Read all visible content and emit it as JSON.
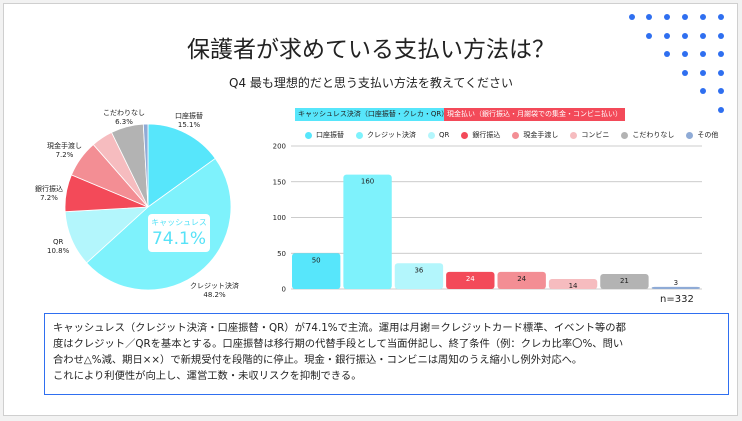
{
  "title": "保護者が求めている支払い方法は？",
  "subtitle": "Q4 最も理想的だと思う支払い方法を教えてください",
  "tags": {
    "cashless": "キャッシュレス決済（口座振替・クレカ・QR）",
    "cash": "現金払い（銀行振込・月謝袋での集金・コンビニ払い）"
  },
  "pie_center": {
    "label": "キャッシュレス",
    "value": "74.1%"
  },
  "pie_labels": [
    {
      "name": "口座振替",
      "pct": "15.1%"
    },
    {
      "name": "クレジット決済",
      "pct": "48.2%"
    },
    {
      "name": "QR",
      "pct": "10.8%"
    },
    {
      "name": "銀行振込",
      "pct": "7.2%"
    },
    {
      "name": "現金手渡し",
      "pct": "7.2%"
    },
    {
      "name": "こだわりなし",
      "pct": "6.3%"
    }
  ],
  "n_label": "n=332",
  "chart_data": {
    "type": "bar",
    "categories": [
      "口座振替",
      "クレジット決済",
      "QR",
      "銀行振込",
      "現金手渡し",
      "コンビニ",
      "こだわりなし",
      "その他"
    ],
    "values": [
      50,
      160,
      36,
      24,
      24,
      14,
      21,
      3
    ],
    "colors": [
      "#57e6fb",
      "#7ef2fc",
      "#b3f6fc",
      "#f34a59",
      "#f38e94",
      "#f6bcbf",
      "#b3b3b3",
      "#8fabd6"
    ],
    "label_colors": [
      "#222",
      "#222",
      "#222",
      "#fff",
      "#222",
      "#222",
      "#222",
      "#222"
    ],
    "yticks": [
      "0",
      "50",
      "100",
      "150",
      "200"
    ],
    "ylim": [
      0,
      200
    ],
    "grid": true,
    "legend": "top"
  },
  "summary": [
    "キャッシュレス（クレジット決済・口座振替・QR）が74.1%で主流。運用は月謝＝クレジットカード標準、イベント等の都",
    "度はクレジット／QRを基本とする。口座振替は移行期の代替手段として当面併記し、終了条件（例：クレカ比率〇%、問い",
    "合わせ△%減、期日××）で新規受付を段階的に停止。現金・銀行振込・コンビニは周知のうえ縮小し例外対応へ。",
    "これにより利便性が向上し、運営工数・未収リスクを抑制できる。"
  ]
}
